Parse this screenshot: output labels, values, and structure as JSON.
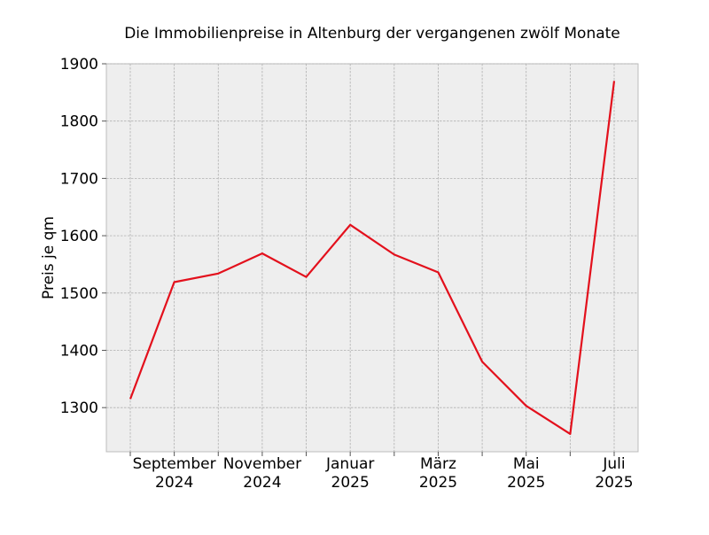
{
  "chart_data": {
    "type": "line",
    "title": "Die Immobilienpreise in Altenburg der vergangenen zwölf Monate",
    "xlabel": "",
    "ylabel": "Preis je qm",
    "x": [
      "2024-08",
      "2024-09",
      "2024-10",
      "2024-11",
      "2024-12",
      "2025-01",
      "2025-02",
      "2025-03",
      "2025-04",
      "2025-05",
      "2025-06",
      "2025-07"
    ],
    "series": [
      {
        "color": "#e3101c",
        "values": [
          1315,
          1519,
          1534,
          1569,
          1528,
          1619,
          1567,
          1536,
          1380,
          1303,
          1254,
          1870
        ]
      }
    ],
    "ylim": [
      1223,
      1900
    ],
    "yticks": [
      1300,
      1400,
      1500,
      1600,
      1700,
      1800,
      1900
    ],
    "xtick_labels": [
      {
        "x": "2024-09",
        "month": "September",
        "year": "2024"
      },
      {
        "x": "2024-11",
        "month": "November",
        "year": "2024"
      },
      {
        "x": "2025-01",
        "month": "Januar",
        "year": "2025"
      },
      {
        "x": "2025-03",
        "month": "März",
        "year": "2025"
      },
      {
        "x": "2025-05",
        "month": "Mai",
        "year": "2025"
      },
      {
        "x": "2025-07",
        "month": "Juli",
        "year": "2025"
      }
    ],
    "grid": true,
    "background": "#eeeeee"
  }
}
